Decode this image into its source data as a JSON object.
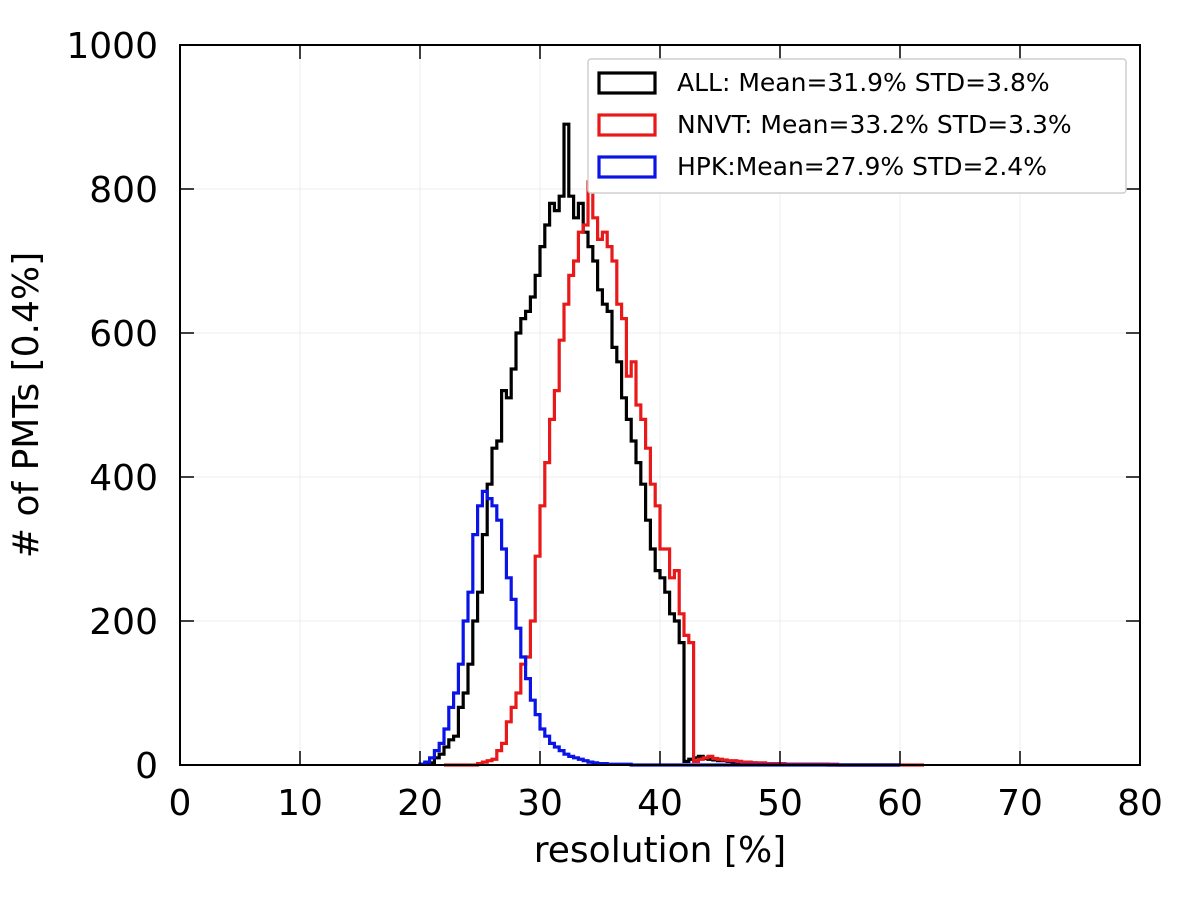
{
  "chart_data": {
    "type": "histogram",
    "title": "",
    "xlabel": "resolution [%]",
    "ylabel": "# of PMTs [0.4%]",
    "xlim": [
      0,
      80
    ],
    "ylim": [
      0,
      1000
    ],
    "xticks": [
      0,
      10,
      20,
      30,
      40,
      50,
      60,
      70,
      80
    ],
    "xtick_labels": [
      "0",
      "10",
      "20",
      "30",
      "40",
      "50",
      "60",
      "70",
      "80"
    ],
    "yticks": [
      0,
      200,
      400,
      600,
      800,
      1000
    ],
    "ytick_labels": [
      "0",
      "200",
      "400",
      "600",
      "800",
      "1000"
    ],
    "grid": true,
    "legend_position": "top-right",
    "bin_width": 0.4,
    "bin_start": 20.0,
    "series": [
      {
        "name": "ALL: Mean=31.9% STD=3.8%",
        "color": "#000000",
        "values": [
          1,
          2,
          3,
          10,
          15,
          25,
          35,
          40,
          80,
          100,
          140,
          200,
          240,
          320,
          390,
          440,
          450,
          520,
          510,
          550,
          600,
          620,
          630,
          650,
          680,
          720,
          750,
          780,
          770,
          790,
          890,
          790,
          760,
          780,
          740,
          720,
          700,
          660,
          640,
          630,
          580,
          560,
          510,
          480,
          450,
          420,
          390,
          340,
          300,
          270,
          260,
          240,
          210,
          200,
          170,
          5,
          8,
          10,
          12,
          9,
          8,
          7,
          6,
          6,
          5,
          4,
          4,
          3,
          3,
          3,
          2,
          2,
          2,
          2,
          1,
          1,
          1,
          1,
          1,
          1,
          1,
          1,
          1,
          1,
          1,
          0,
          0,
          0,
          0,
          0,
          0,
          0,
          0,
          0,
          0,
          0,
          0,
          0,
          0,
          0
        ]
      },
      {
        "name": "NNVT: Mean=33.2% STD=3.3%",
        "color": "#e8191a",
        "values": [
          0,
          0,
          0,
          0,
          0,
          0,
          0,
          2,
          4,
          6,
          8,
          20,
          30,
          60,
          80,
          100,
          140,
          150,
          200,
          290,
          360,
          420,
          480,
          520,
          590,
          640,
          680,
          700,
          740,
          750,
          810,
          760,
          730,
          740,
          720,
          700,
          640,
          620,
          540,
          560,
          500,
          480,
          440,
          390,
          360,
          300,
          300,
          260,
          270,
          210,
          180,
          170,
          5,
          8,
          10,
          12,
          9,
          8,
          7,
          6,
          6,
          5,
          4,
          4,
          3,
          3,
          3,
          2,
          2,
          2,
          2,
          1,
          1,
          1,
          1,
          1,
          1,
          1,
          1,
          1,
          1,
          1,
          0,
          0,
          0,
          0,
          0,
          0,
          0,
          0,
          0,
          0,
          0,
          0,
          0,
          0,
          0,
          0,
          0,
          0
        ],
        "bin_start": 22.0
      },
      {
        "name": "HPK:Mean=27.9% STD=2.4%",
        "color": "#0a14e6",
        "values": [
          1,
          4,
          10,
          20,
          30,
          50,
          80,
          100,
          140,
          200,
          240,
          320,
          360,
          380,
          370,
          360,
          340,
          300,
          260,
          230,
          190,
          150,
          120,
          90,
          70,
          50,
          40,
          30,
          25,
          20,
          15,
          12,
          10,
          8,
          6,
          4,
          3,
          2,
          2,
          1,
          1,
          1,
          1,
          1,
          0,
          0,
          0,
          0,
          0,
          0,
          0,
          0,
          0,
          0,
          0,
          0,
          0,
          0,
          0,
          0,
          0,
          0,
          0,
          0,
          0,
          0,
          0,
          0,
          0,
          0,
          0,
          0,
          0,
          0,
          0,
          0,
          0,
          0,
          0,
          0,
          0,
          0,
          0,
          0,
          0,
          0,
          0,
          0,
          0,
          0,
          0,
          0,
          0,
          0,
          0,
          0,
          0,
          0,
          0,
          0
        ]
      }
    ]
  }
}
